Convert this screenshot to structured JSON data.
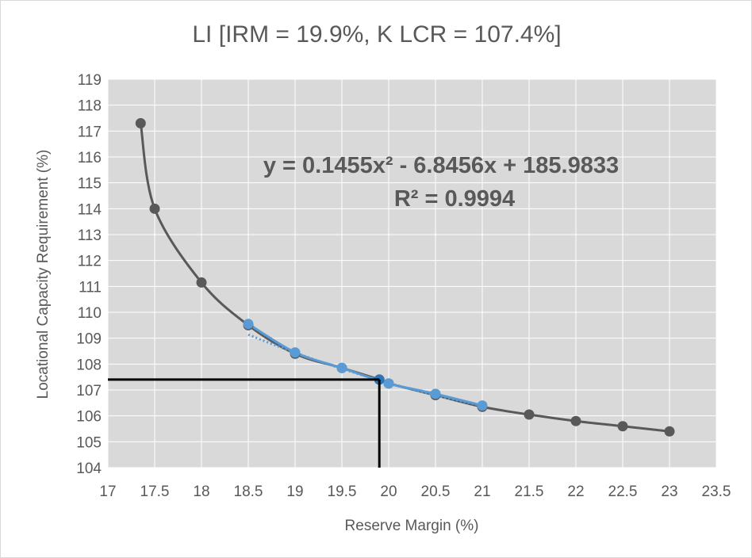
{
  "chart_data": {
    "type": "scatter",
    "title": "LI [IRM = 19.9%, K LCR = 107.4%]",
    "xlabel": "Reserve Margin (%)",
    "ylabel": "Locational Capacity Requirement (%)",
    "xlim": [
      17,
      23.5
    ],
    "ylim": [
      104,
      119
    ],
    "x_ticks": [
      "17",
      "17.5",
      "18",
      "18.5",
      "19",
      "19.5",
      "20",
      "20.5",
      "21",
      "21.5",
      "22",
      "22.5",
      "23",
      "23.5"
    ],
    "y_ticks": [
      "104",
      "105",
      "106",
      "107",
      "108",
      "109",
      "110",
      "111",
      "112",
      "113",
      "114",
      "115",
      "116",
      "117",
      "118",
      "119"
    ],
    "grid": true,
    "plot_background": "#d9d9d9",
    "series": [
      {
        "color": "#595959",
        "style": "smooth-line-markers",
        "x": [
          17.35,
          17.5,
          18.0,
          18.5,
          19.0,
          19.5,
          19.9,
          20.0,
          20.5,
          21.0,
          21.5,
          22.0,
          22.5,
          23.0
        ],
        "y": [
          117.3,
          114.0,
          111.15,
          109.5,
          108.4,
          107.85,
          107.4,
          107.25,
          106.8,
          106.35,
          106.05,
          105.8,
          105.6,
          105.4
        ]
      },
      {
        "color": "#5b9bd5",
        "style": "line-markers",
        "x": [
          18.5,
          19.0,
          19.5,
          20.0,
          20.5,
          21.0
        ],
        "y": [
          109.55,
          108.45,
          107.85,
          107.25,
          106.85,
          106.4
        ]
      },
      {
        "color": "#2e75b6",
        "style": "point",
        "x": [
          19.9
        ],
        "y": [
          107.4
        ]
      }
    ],
    "trendline": {
      "type": "polynomial-2",
      "coefficients": [
        0.1455,
        -6.8456,
        185.9833
      ],
      "x_range": [
        18.5,
        21.0
      ],
      "color": "#5b9bd5",
      "equation": "y = 0.1455x² - 6.8456x + 185.9833",
      "r_squared": "R² = 0.9994"
    },
    "reference_lines": {
      "x": 19.9,
      "y": 107.4,
      "color": "#000000"
    }
  }
}
